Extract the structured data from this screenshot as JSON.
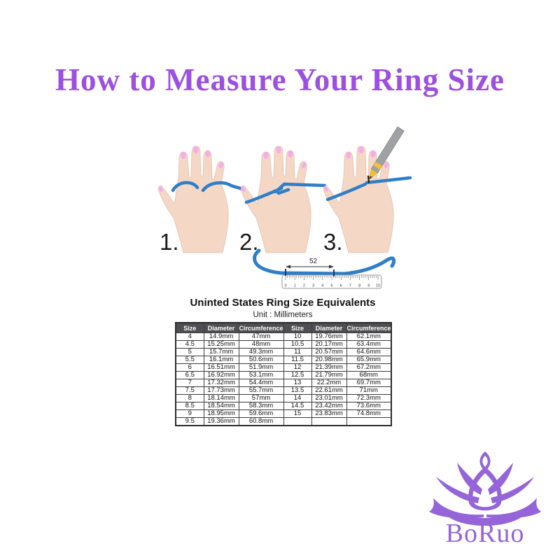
{
  "title": {
    "text": "How to Measure Your Ring Size"
  },
  "steps": {
    "labels": [
      "1.",
      "2.",
      "3."
    ]
  },
  "ruler": {
    "measurement_label": "52",
    "tick_labels": [
      "0",
      "1",
      "2",
      "3",
      "4",
      "5",
      "6",
      "7",
      "8",
      "9",
      "10"
    ]
  },
  "size_chart": {
    "title": "Uninted States Ring Size Equivalents",
    "subtitle": "Unit : Millimeters",
    "headers": [
      "Size",
      "Diameter",
      "Circumference",
      "Size",
      "Diameter",
      "Circumference"
    ],
    "rows": [
      [
        "4",
        "14.9mm",
        "47mm",
        "10",
        "19.76mm",
        "62.1mm"
      ],
      [
        "4.5",
        "15.25mm",
        "48mm",
        "10.5",
        "20.17mm",
        "63.4mm"
      ],
      [
        "5",
        "15.7mm",
        "49.3mm",
        "11",
        "20.57mm",
        "64.6mm"
      ],
      [
        "5.5",
        "16.1mm",
        "50.6mm",
        "11.5",
        "20.98mm",
        "65.9mm"
      ],
      [
        "6",
        "16.51mm",
        "51.9mm",
        "12",
        "21.39mm",
        "67.2mm"
      ],
      [
        "6.5",
        "16.92mm",
        "53.1mm",
        "12.5",
        "21.79mm",
        "68mm"
      ],
      [
        "7",
        "17.32mm",
        "54.4mm",
        "13",
        "22.2mm",
        "69.7mm"
      ],
      [
        "7.5",
        "17.73mm",
        "55.7mm",
        "13.5",
        "22.61mm",
        "71mm"
      ],
      [
        "8",
        "18.14mm",
        "57mm",
        "14",
        "23.01mm",
        "72.3mm"
      ],
      [
        "8.5",
        "18.54mm",
        "58.3mm",
        "14.5",
        "23.42mm",
        "73.6mm"
      ],
      [
        "9",
        "18.95mm",
        "59.6mm",
        "15",
        "23.83mm",
        "74.8mm"
      ],
      [
        "9.5",
        "19.36mm",
        "60.8mm",
        "",
        "",
        ""
      ]
    ]
  },
  "logo": {
    "brand": "BoRuo"
  },
  "colors": {
    "title_purple": "#9C4FE0",
    "logo_purple": "#9464D8",
    "string_blue": "#2E7EC8",
    "skin": "#F4D7C5",
    "nail_pink": "#F3AEE9",
    "pen_gray": "#9FA1A4",
    "pen_yellow": "#F2C230",
    "table_header_bg": "#4F4F52",
    "table_border": "#3C3C3C"
  }
}
